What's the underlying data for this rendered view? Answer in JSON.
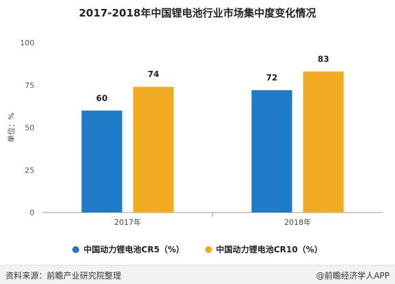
{
  "chart_data": {
    "type": "bar",
    "title": "2017-2018年中国锂电池行业市场集中度变化情况",
    "ylabel": "单位：%",
    "xlabel": "",
    "ylim": [
      0,
      100
    ],
    "yticks": [
      0,
      25,
      50,
      75,
      100
    ],
    "categories": [
      "2017年",
      "2018年"
    ],
    "series": [
      {
        "name": "中国动力锂电池CR5（%）",
        "values": [
          60,
          72
        ],
        "color": "#1f7ac8"
      },
      {
        "name": "中国动力锂电池CR10（%）",
        "values": [
          74,
          83
        ],
        "color": "#f0ab22"
      }
    ],
    "grid": false,
    "legend_position": "bottom"
  },
  "footer": {
    "source": "资料来源：前瞻产业研究院整理",
    "credit": "@前瞻经济学人APP"
  }
}
